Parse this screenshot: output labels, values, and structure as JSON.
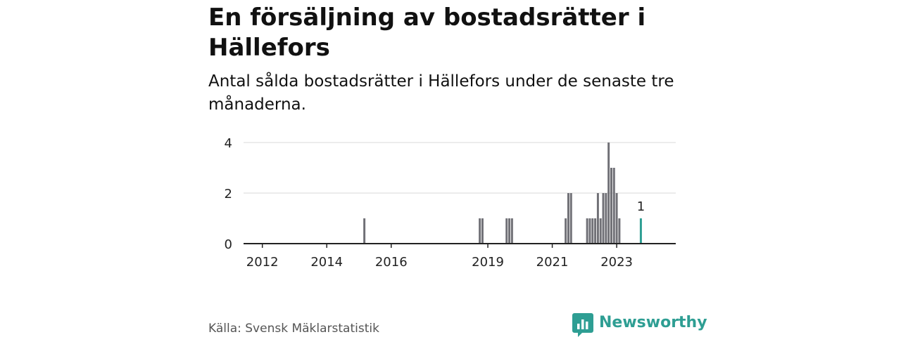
{
  "title": "En försäljning av bostadsrätter i Hällefors",
  "subtitle": "Antal sålda bostadsrätter i Hällefors under de senaste tre månaderna.",
  "source": "Källa: Svensk Mäklarstatistik",
  "brand": {
    "name": "Newsworthy",
    "icon": "newsworthy-logo-icon"
  },
  "colors": {
    "bar": "#707076",
    "highlight": "#2e9e93",
    "grid": "#d9d9d9",
    "axis": "#222222"
  },
  "chart_data": {
    "type": "bar",
    "ylim": [
      0,
      4
    ],
    "yticks": [
      0,
      2,
      4
    ],
    "xlim": [
      "2011-06",
      "2024-11"
    ],
    "xticks": [
      "2012",
      "2014",
      "2016",
      "2019",
      "2021",
      "2023"
    ],
    "grid": true,
    "series": [
      {
        "points": [
          {
            "x": "2015-03",
            "y": 1
          },
          {
            "x": "2018-10",
            "y": 1
          },
          {
            "x": "2018-11",
            "y": 1
          },
          {
            "x": "2019-08",
            "y": 1
          },
          {
            "x": "2019-09",
            "y": 1
          },
          {
            "x": "2019-10",
            "y": 1
          },
          {
            "x": "2021-06",
            "y": 1
          },
          {
            "x": "2021-07",
            "y": 2
          },
          {
            "x": "2021-08",
            "y": 2
          },
          {
            "x": "2022-02",
            "y": 1
          },
          {
            "x": "2022-03",
            "y": 1
          },
          {
            "x": "2022-04",
            "y": 1
          },
          {
            "x": "2022-05",
            "y": 1
          },
          {
            "x": "2022-06",
            "y": 2
          },
          {
            "x": "2022-07",
            "y": 1
          },
          {
            "x": "2022-08",
            "y": 2
          },
          {
            "x": "2022-09",
            "y": 2
          },
          {
            "x": "2022-10",
            "y": 4
          },
          {
            "x": "2022-11",
            "y": 3
          },
          {
            "x": "2022-12",
            "y": 3
          },
          {
            "x": "2023-01",
            "y": 2
          },
          {
            "x": "2023-02",
            "y": 1
          }
        ]
      }
    ],
    "highlight": {
      "x": "2023-10",
      "y": 1,
      "label": "1"
    }
  }
}
